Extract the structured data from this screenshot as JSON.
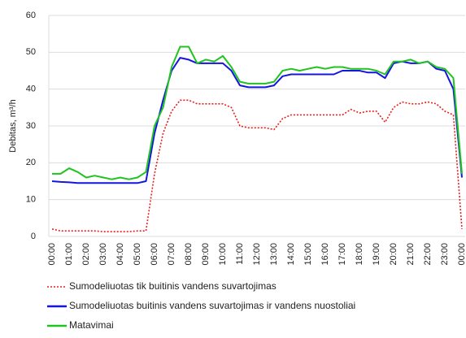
{
  "chart_data": {
    "type": "line",
    "y_label": "Debitas, m³/h",
    "categories": [
      "00:00",
      null,
      "01:00",
      null,
      "02:00",
      null,
      "03:00",
      null,
      "04:00",
      null,
      "05:00",
      null,
      "06:00",
      null,
      "07:00",
      null,
      "08:00",
      null,
      "09:00",
      null,
      "10:00",
      null,
      "11:00",
      null,
      "12:00",
      null,
      "13:00",
      null,
      "14:00",
      null,
      "15:00",
      null,
      "16:00",
      null,
      "17:00",
      null,
      "18:00",
      null,
      "19:00",
      null,
      "20:00",
      null,
      "21:00",
      null,
      "22:00",
      null,
      "23:00",
      null,
      "00:00"
    ],
    "ylim": [
      0,
      60
    ],
    "yticks": [
      0,
      10,
      20,
      30,
      40,
      50,
      60
    ],
    "grid": true,
    "series": [
      {
        "name": "Sumodeliuotas tik buitinis vandens suvartojimas",
        "color": "#e8201c",
        "dashed": true,
        "values": [
          2,
          1.5,
          1.5,
          1.5,
          1.5,
          1.5,
          1.3,
          1.3,
          1.3,
          1.3,
          1.5,
          1.5,
          17,
          28,
          34,
          37,
          37,
          36,
          36,
          36,
          36,
          35,
          30,
          29.5,
          29.5,
          29.5,
          29,
          32,
          33,
          33,
          33,
          33,
          33,
          33,
          33,
          34.5,
          33.5,
          34,
          34,
          31,
          35,
          36.5,
          36,
          36,
          36.5,
          36,
          34,
          33,
          2
        ]
      },
      {
        "name": "Sumodeliuotas buitinis vandens suvartojimas ir vandens  nuostoliai",
        "color": "#1515e0",
        "dashed": false,
        "values": [
          15,
          14.8,
          14.7,
          14.5,
          14.5,
          14.5,
          14.5,
          14.5,
          14.5,
          14.5,
          14.5,
          15,
          28,
          37,
          45,
          48.5,
          48,
          47,
          47,
          47,
          47,
          45,
          41,
          40.5,
          40.5,
          40.5,
          41,
          43.5,
          44,
          44,
          44,
          44,
          44,
          44,
          45,
          45,
          45,
          44.5,
          44.5,
          43,
          47,
          47.5,
          47,
          47,
          47.5,
          45.5,
          45,
          40,
          16
        ]
      },
      {
        "name": "Matavimai",
        "color": "#1fc41f",
        "dashed": false,
        "values": [
          17,
          17,
          18.5,
          17.5,
          16,
          16.5,
          16,
          15.5,
          16,
          15.5,
          16,
          17.5,
          30,
          35,
          46,
          51.5,
          51.5,
          47,
          48,
          47.5,
          49,
          46,
          42,
          41.5,
          41.5,
          41.5,
          42,
          45,
          45.5,
          45,
          45.5,
          46,
          45.5,
          46,
          46,
          45.5,
          45.5,
          45.5,
          45,
          44,
          47.5,
          47.5,
          48,
          47,
          47.5,
          46,
          45.5,
          43,
          17
        ]
      }
    ]
  }
}
